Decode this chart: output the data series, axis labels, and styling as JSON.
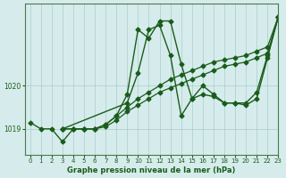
{
  "title": "Graphe pression niveau de la mer (hPa)",
  "background_color": "#d6ecec",
  "plot_bg_color": "#d6ecec",
  "grid_color": "#aacccc",
  "line_color": "#1a5c1a",
  "xlim": [
    -0.5,
    23
  ],
  "ylim": [
    1018.4,
    1021.9
  ],
  "yticks": [
    1019,
    1020
  ],
  "xticks": [
    0,
    1,
    2,
    3,
    4,
    5,
    6,
    7,
    8,
    9,
    10,
    11,
    12,
    13,
    14,
    15,
    16,
    17,
    18,
    19,
    20,
    21,
    22,
    23
  ],
  "series": [
    {
      "x": [
        0,
        1,
        2,
        3,
        4,
        5,
        6,
        7,
        8,
        9,
        10,
        11,
        12,
        13,
        14,
        15,
        16,
        17,
        18,
        19,
        20,
        21,
        22,
        23
      ],
      "y": [
        1019.15,
        1019.0,
        1019.0,
        1018.7,
        1019.0,
        1019.0,
        1019.0,
        1019.1,
        1019.3,
        1019.8,
        1021.3,
        1021.1,
        1021.5,
        1021.5,
        1020.5,
        1019.7,
        1019.8,
        1019.75,
        1019.6,
        1019.6,
        1019.6,
        1019.85,
        1020.7,
        1021.6
      ],
      "marker": "D",
      "markersize": 2.5,
      "linestyle": "-",
      "linewidth": 1.0
    },
    {
      "x": [
        3,
        4,
        5,
        6,
        7,
        8,
        9,
        10,
        11,
        12,
        13,
        14,
        15,
        16,
        17,
        18,
        19,
        20,
        21,
        22,
        23
      ],
      "y": [
        1019.0,
        1019.0,
        1019.0,
        1019.0,
        1019.1,
        1019.3,
        1019.5,
        1019.7,
        1019.85,
        1020.0,
        1020.15,
        1020.25,
        1020.35,
        1020.45,
        1020.55,
        1020.6,
        1020.65,
        1020.7,
        1020.8,
        1020.9,
        1021.6
      ],
      "marker": "D",
      "markersize": 2.5,
      "linestyle": "-",
      "linewidth": 0.9
    },
    {
      "x": [
        3,
        4,
        5,
        6,
        7,
        8,
        9,
        10,
        11,
        12,
        13,
        14,
        15,
        16,
        17,
        18,
        19,
        20,
        21,
        22,
        23
      ],
      "y": [
        1019.0,
        1019.0,
        1019.0,
        1019.0,
        1019.05,
        1019.2,
        1019.4,
        1019.55,
        1019.7,
        1019.85,
        1019.95,
        1020.05,
        1020.15,
        1020.25,
        1020.35,
        1020.45,
        1020.5,
        1020.55,
        1020.65,
        1020.75,
        1021.6
      ],
      "marker": "D",
      "markersize": 2.5,
      "linestyle": "-",
      "linewidth": 0.9
    },
    {
      "x": [
        3,
        9,
        10,
        11,
        12,
        13,
        14,
        15,
        16,
        17,
        18,
        19,
        20,
        21,
        22,
        23
      ],
      "y": [
        1019.0,
        1019.6,
        1020.3,
        1021.3,
        1021.4,
        1020.7,
        1019.3,
        1019.7,
        1020.0,
        1019.8,
        1019.6,
        1019.6,
        1019.55,
        1019.7,
        1020.65,
        1021.6
      ],
      "marker": "D",
      "markersize": 2.5,
      "linestyle": "-",
      "linewidth": 1.0
    }
  ]
}
